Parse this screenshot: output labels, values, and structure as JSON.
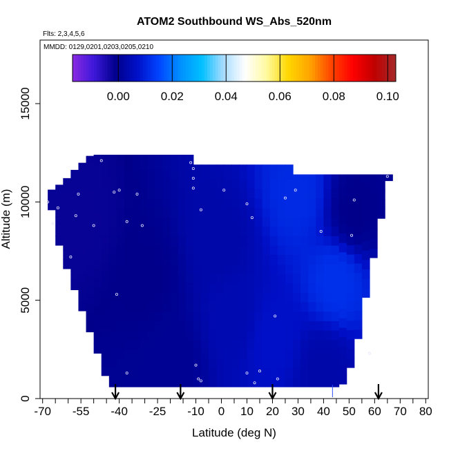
{
  "chart_data": {
    "type": "heatmap",
    "title": "ATOM2 Southbound WS_Abs_520nm",
    "flights_note": "Flts: 2,3,4,5,6",
    "dates_note": "MMDD: 0129,0201,0203,0205,0210",
    "xlabel": "Latitude (deg N)",
    "ylabel": "Altitude (m)",
    "xlim": [
      -70,
      80
    ],
    "ylim": [
      0,
      17500
    ],
    "x_ticks": [
      -70,
      -55,
      -40,
      -25,
      -10,
      0,
      10,
      20,
      30,
      40,
      50,
      60,
      70,
      80
    ],
    "x_tick_labels": [
      "-70",
      "-55",
      "-40",
      "-25",
      "-10",
      "0",
      "10",
      "20",
      "30",
      "40",
      "50",
      "60",
      "70",
      "80"
    ],
    "y_ticks": [
      0,
      5000,
      10000,
      15000
    ],
    "y_tick_labels": [
      "0",
      "5000",
      "10000",
      "15000"
    ],
    "colorbar": {
      "range": [
        -0.017,
        0.103
      ],
      "ticks": [
        0.0,
        0.02,
        0.04,
        0.06,
        0.08,
        0.1
      ],
      "tick_labels": [
        "0.00",
        "0.02",
        "0.04",
        "0.06",
        "0.08",
        "0.10"
      ],
      "colors": [
        "#8a2be2",
        "#3d17d9",
        "#00008b",
        "#0010c8",
        "#0044ff",
        "#0090ff",
        "#00c0ff",
        "#a8dcff",
        "#ffffff",
        "#fffaa0",
        "#ffd700",
        "#ffa500",
        "#ff4500",
        "#ff0000",
        "#c00000",
        "#a52a2a"
      ]
    },
    "region": {
      "top_altitude_by_lat": [
        {
          "lat": -68,
          "alt": 10500
        },
        {
          "lat": -62,
          "alt": 11000
        },
        {
          "lat": -57,
          "alt": 11700
        },
        {
          "lat": -51,
          "alt": 12400
        },
        {
          "lat": -40,
          "alt": 12400
        },
        {
          "lat": -12,
          "alt": 12400
        },
        {
          "lat": -12,
          "alt": 11900
        },
        {
          "lat": 28,
          "alt": 11900
        },
        {
          "lat": 28,
          "alt": 11400
        },
        {
          "lat": 66,
          "alt": 11400
        }
      ],
      "bottom_altitude_by_lat": [
        {
          "lat": -68,
          "alt": 10500
        },
        {
          "lat": -63,
          "alt": 7500
        },
        {
          "lat": -56,
          "alt": 5000
        },
        {
          "lat": -49,
          "alt": 2500
        },
        {
          "lat": -44,
          "alt": 600
        },
        {
          "lat": 47,
          "alt": 600
        },
        {
          "lat": 52,
          "alt": 2000
        },
        {
          "lat": 57,
          "alt": 5500
        },
        {
          "lat": 63,
          "alt": 9500
        },
        {
          "lat": 66,
          "alt": 11400
        }
      ],
      "value_field": [
        {
          "lat": -55,
          "alt": 9000,
          "value": -0.002
        },
        {
          "lat": -30,
          "alt": 6000,
          "value": -0.001
        },
        {
          "lat": -20,
          "alt": 2000,
          "value": 0.0
        },
        {
          "lat": 0,
          "alt": 8000,
          "value": 0.003
        },
        {
          "lat": 5,
          "alt": 4000,
          "value": 0.004
        },
        {
          "lat": 20,
          "alt": 3000,
          "value": 0.007
        },
        {
          "lat": 30,
          "alt": 10300,
          "value": 0.011
        },
        {
          "lat": 45,
          "alt": 6000,
          "value": 0.012
        },
        {
          "lat": 52,
          "alt": 9500,
          "value": -0.001
        },
        {
          "lat": 40,
          "alt": 1500,
          "value": 0.003
        }
      ]
    },
    "sample_points": [
      {
        "lat": -47,
        "alt": 12100
      },
      {
        "lat": -12,
        "alt": 12000
      },
      {
        "lat": -11,
        "alt": 11700
      },
      {
        "lat": -11,
        "alt": 10700
      },
      {
        "lat": -11,
        "alt": 11200
      },
      {
        "lat": -68,
        "alt": 10000
      },
      {
        "lat": -64,
        "alt": 9700
      },
      {
        "lat": -66,
        "alt": 8900
      },
      {
        "lat": -56,
        "alt": 10400
      },
      {
        "lat": -57,
        "alt": 9300
      },
      {
        "lat": -50,
        "alt": 8800
      },
      {
        "lat": -42,
        "alt": 10500
      },
      {
        "lat": -40,
        "alt": 10600
      },
      {
        "lat": -33,
        "alt": 10400
      },
      {
        "lat": -37,
        "alt": 9000
      },
      {
        "lat": -31,
        "alt": 8800
      },
      {
        "lat": -59,
        "alt": 7200
      },
      {
        "lat": -41,
        "alt": 5300
      },
      {
        "lat": -8,
        "alt": 9600
      },
      {
        "lat": 1,
        "alt": 10600
      },
      {
        "lat": 10,
        "alt": 9900
      },
      {
        "lat": 12,
        "alt": 9200
      },
      {
        "lat": 25,
        "alt": 10200
      },
      {
        "lat": 29,
        "alt": 10600
      },
      {
        "lat": 39,
        "alt": 8500
      },
      {
        "lat": 52,
        "alt": 10100
      },
      {
        "lat": 51,
        "alt": 8300
      },
      {
        "lat": 65,
        "alt": 11300
      },
      {
        "lat": 58,
        "alt": 2300
      },
      {
        "lat": 21,
        "alt": 4200
      },
      {
        "lat": -37,
        "alt": 1300
      },
      {
        "lat": -10,
        "alt": 1700
      },
      {
        "lat": -9,
        "alt": 1000
      },
      {
        "lat": -8,
        "alt": 900
      },
      {
        "lat": 10,
        "alt": 1300
      },
      {
        "lat": 13,
        "alt": 800
      },
      {
        "lat": 15,
        "alt": 1400
      },
      {
        "lat": 22,
        "alt": 1000
      }
    ],
    "flight_markers_lat": [
      -41.5,
      -16,
      20,
      61.5
    ],
    "divider_line_lat": 43.5
  }
}
